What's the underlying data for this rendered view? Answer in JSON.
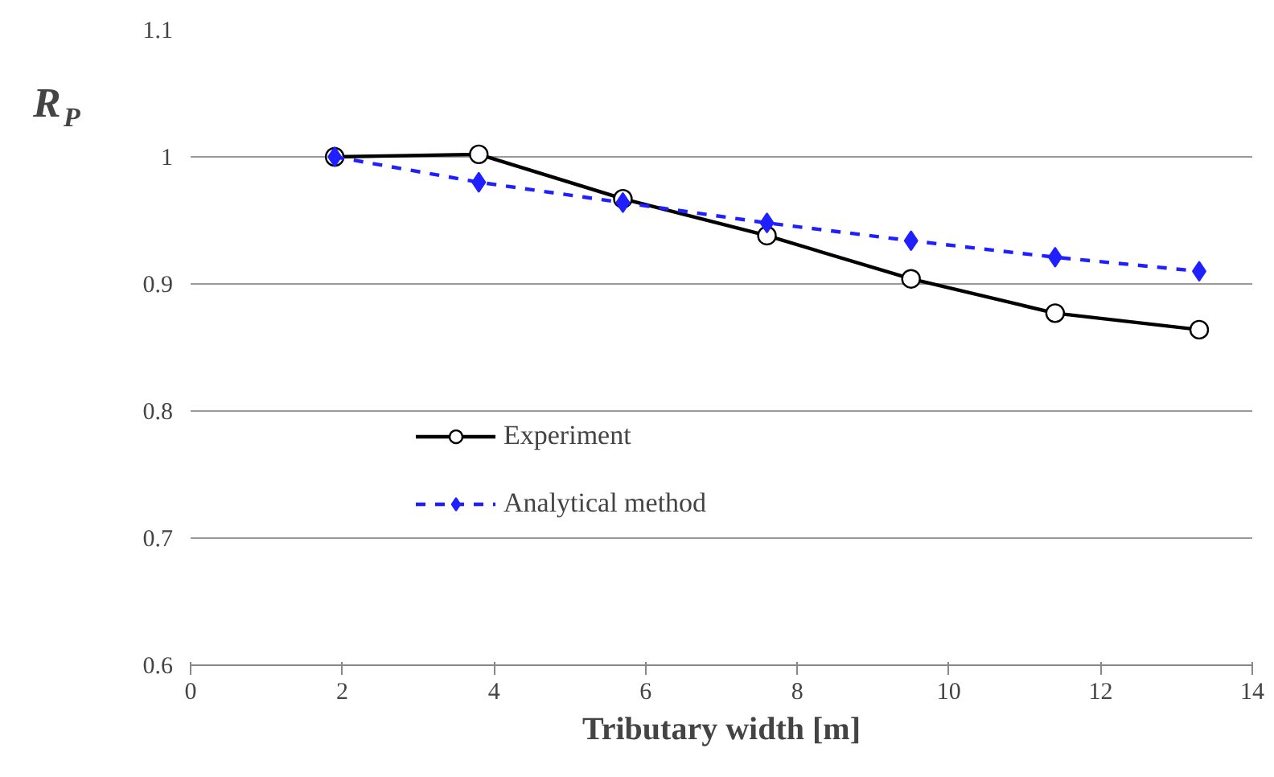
{
  "chart_data": {
    "type": "line",
    "xlabel": "Tributary width [m]",
    "ylabel": "R$_{P}$",
    "x": [
      1.9,
      3.8,
      5.7,
      7.6,
      9.5,
      11.4,
      13.3
    ],
    "series": [
      {
        "name": "Experiment",
        "color": "#000000",
        "values": [
          1.0,
          1.002,
          0.967,
          0.938,
          0.904,
          0.877,
          0.864
        ],
        "marker": "circle",
        "line_style": "solid"
      },
      {
        "name": "Analytical method",
        "color": "#1f1fff",
        "values": [
          1.0,
          0.98,
          0.964,
          0.948,
          0.934,
          0.921,
          0.91
        ],
        "marker": "diamond",
        "line_style": "dashed"
      }
    ],
    "xlim": [
      0,
      14
    ],
    "xticks": [
      0,
      2,
      4,
      6,
      8,
      10,
      12,
      14
    ],
    "ylim": [
      0.6,
      1.1
    ],
    "yticks": [
      0.6,
      0.7,
      0.8,
      0.9,
      1,
      1.1
    ],
    "grid": "y",
    "legend": "left"
  }
}
